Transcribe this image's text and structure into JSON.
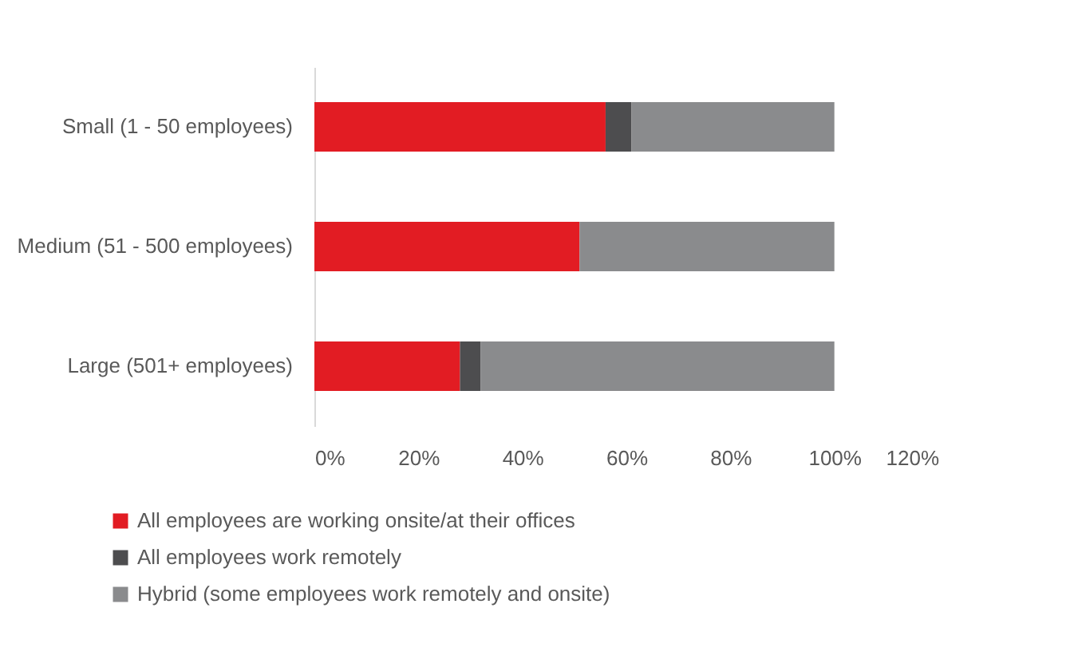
{
  "chart_data": {
    "type": "bar",
    "orientation": "horizontal",
    "stacked": true,
    "categories": [
      "Small (1 - 50 employees)",
      "Medium (51 - 500 employees)",
      "Large (501+ employees)"
    ],
    "series": [
      {
        "name": "All employees are working onsite/at their offices",
        "color": "#e21c23",
        "values": [
          56,
          51,
          28
        ]
      },
      {
        "name": "All employees work remotely",
        "color": "#4d4d4f",
        "values": [
          5,
          0,
          4
        ]
      },
      {
        "name": "Hybrid (some employees work remotely and onsite)",
        "color": "#8a8b8d",
        "values": [
          39,
          49,
          68
        ]
      }
    ],
    "xlim": [
      0,
      120
    ],
    "xticks": [
      {
        "value": 0,
        "label": "0%"
      },
      {
        "value": 20,
        "label": "20%"
      },
      {
        "value": 40,
        "label": "40%"
      },
      {
        "value": 60,
        "label": "60%"
      },
      {
        "value": 80,
        "label": "80%"
      },
      {
        "value": 100,
        "label": "100%"
      },
      {
        "value": 120,
        "label": "120%"
      }
    ],
    "grid": false,
    "legend": "bottom"
  }
}
